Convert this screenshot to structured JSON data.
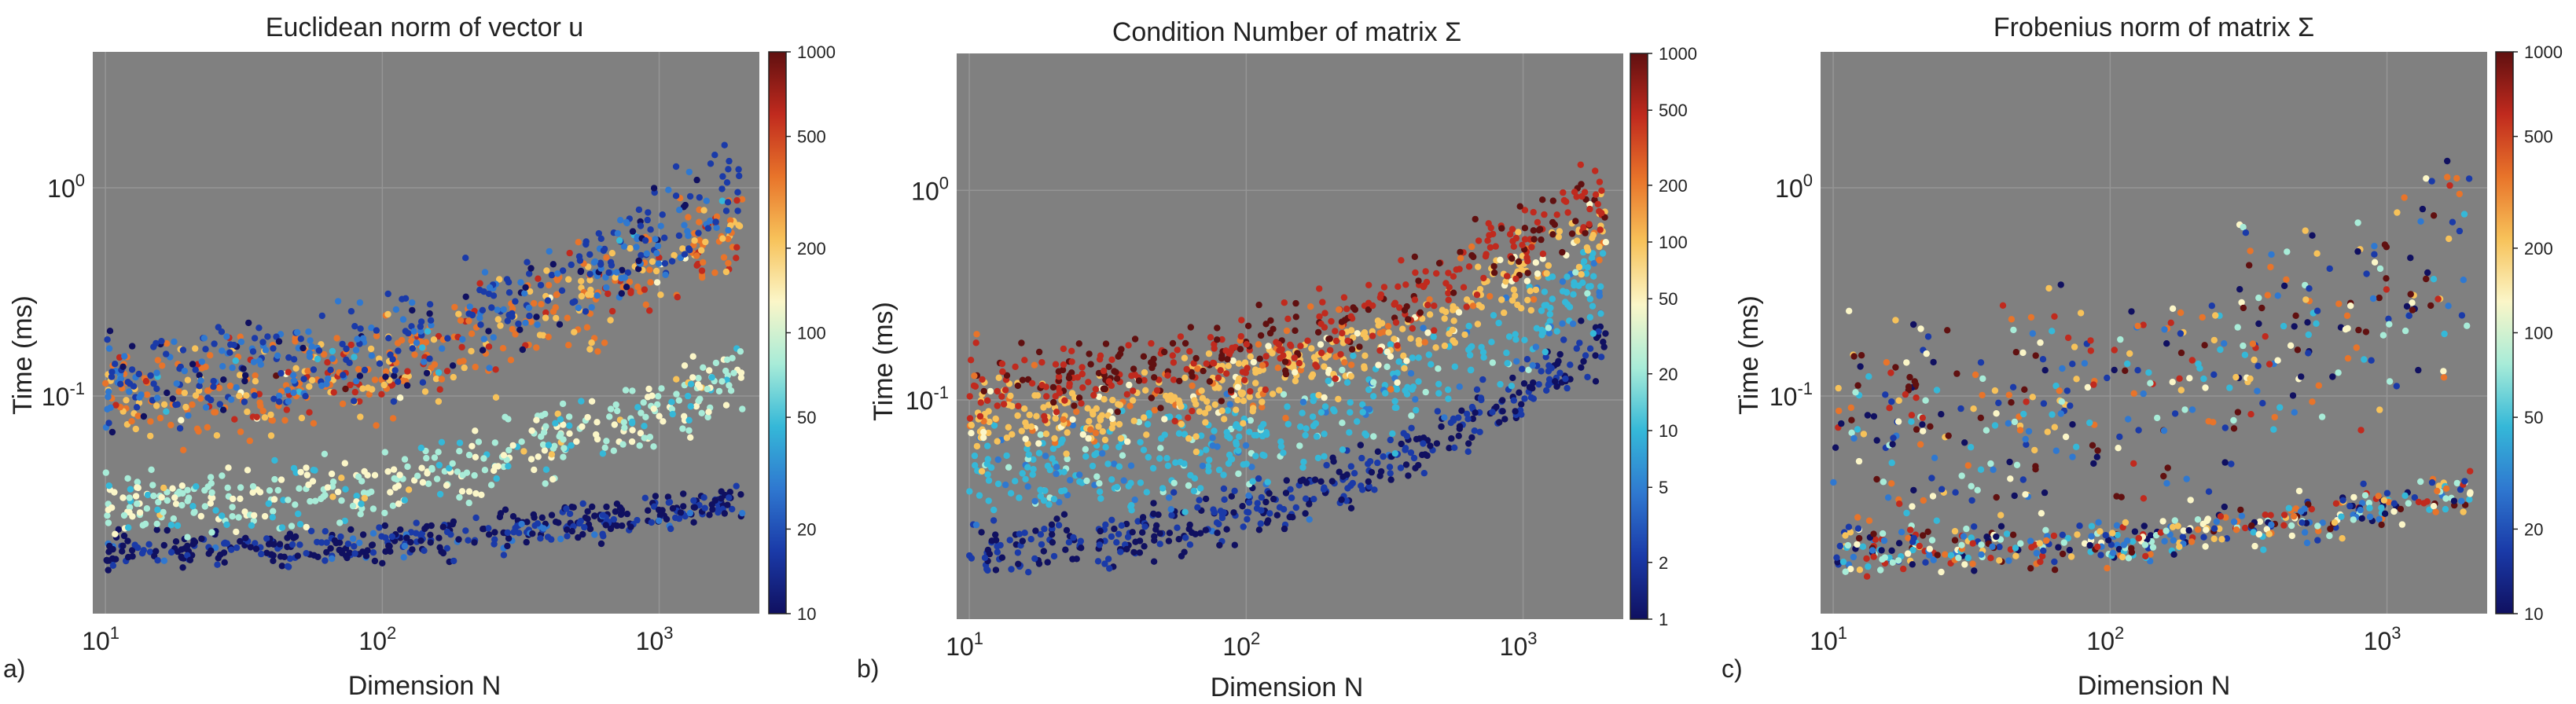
{
  "colors": {
    "plot_background": "#808080",
    "grid": "#959595",
    "colormap": [
      "#101060",
      "#1a3aa8",
      "#2f78d0",
      "#35b8d8",
      "#a8ecd8",
      "#fbf6c8",
      "#f7c25a",
      "#e8742a",
      "#c02a1e",
      "#601010"
    ]
  },
  "chart_data": [
    {
      "type": "scatter",
      "panel_label": "a)",
      "title": "Euclidean norm of vector u",
      "xlabel": "Dimension N",
      "ylabel": "Time (ms)",
      "xscale": "log",
      "yscale": "log",
      "xlim": [
        9,
        2300
      ],
      "ylim": [
        0.009,
        4.5
      ],
      "x_ticks": [
        {
          "value": 10,
          "label": "10^1",
          "base": "10",
          "exp": "1"
        },
        {
          "value": 100,
          "label": "10^2",
          "base": "10",
          "exp": "2"
        },
        {
          "value": 1000,
          "label": "10^3",
          "base": "10",
          "exp": "3"
        }
      ],
      "y_ticks": [
        {
          "value": 0.1,
          "label": "10^-1",
          "base": "10",
          "exp": "-1"
        },
        {
          "value": 1,
          "label": "10^0",
          "base": "10",
          "exp": "0"
        }
      ],
      "colorbar": {
        "scale": "log",
        "range": [
          10,
          1000
        ],
        "ticks": [
          "10",
          "20",
          "50",
          "100",
          "200",
          "500",
          "1000"
        ],
        "tick_values": [
          10,
          20,
          50,
          100,
          200,
          500,
          1000
        ]
      },
      "series": [
        {
          "name": "norm ~ 10 (lowest band)",
          "color_value": 12,
          "y_at_N10": 0.018,
          "y_at_N2000": 0.032,
          "spread": 0.1
        },
        {
          "name": "norm ~ 50-100 band",
          "color_value": 90,
          "y_at_N10": 0.03,
          "y_at_N2000": 0.13,
          "spread": 0.18
        },
        {
          "name": "norm ~ 200-500 band",
          "color_value": 350,
          "y_at_N10": 0.1,
          "y_at_N2000": 0.7,
          "spread": 0.25
        },
        {
          "name": "norm ~ 20 (upper band)",
          "color_value": 20,
          "y_at_N10": 0.12,
          "y_at_N2000": 1.1,
          "spread": 0.25
        }
      ]
    },
    {
      "type": "scatter",
      "panel_label": "b)",
      "title": "Condition Number of matrix Σ",
      "xlabel": "Dimension N",
      "ylabel": "Time (ms)",
      "xscale": "log",
      "yscale": "log",
      "xlim": [
        9,
        2300
      ],
      "ylim": [
        0.009,
        4.5
      ],
      "x_ticks": [
        {
          "value": 10,
          "label": "10^1",
          "base": "10",
          "exp": "1"
        },
        {
          "value": 100,
          "label": "10^2",
          "base": "10",
          "exp": "2"
        },
        {
          "value": 1000,
          "label": "10^3",
          "base": "10",
          "exp": "3"
        }
      ],
      "y_ticks": [
        {
          "value": 0.1,
          "label": "10^-1",
          "base": "10",
          "exp": "-1"
        },
        {
          "value": 1,
          "label": "10^0",
          "base": "10",
          "exp": "0"
        }
      ],
      "colorbar": {
        "scale": "log",
        "range": [
          1,
          1000
        ],
        "ticks": [
          "1",
          "2",
          "5",
          "10",
          "20",
          "50",
          "100",
          "200",
          "500",
          "1000"
        ],
        "tick_values": [
          1,
          2,
          5,
          10,
          20,
          50,
          100,
          200,
          500,
          1000
        ]
      },
      "series": [
        {
          "name": "cond ~ 1-2 (lowest band)",
          "color_value": 1.5,
          "y_at_N10": 0.02,
          "y_at_N2000": 0.2,
          "spread": 0.15
        },
        {
          "name": "cond ~ 5-20 band",
          "color_value": 10,
          "y_at_N10": 0.045,
          "y_at_N2000": 0.4,
          "spread": 0.25
        },
        {
          "name": "cond ~ 50-200 band",
          "color_value": 100,
          "y_at_N10": 0.08,
          "y_at_N2000": 0.7,
          "spread": 0.2
        },
        {
          "name": "cond ~ 500-1000 band",
          "color_value": 600,
          "y_at_N10": 0.12,
          "y_at_N2000": 1.0,
          "spread": 0.2
        }
      ]
    },
    {
      "type": "scatter",
      "panel_label": "c)",
      "title": "Frobenius norm of matrix Σ",
      "xlabel": "Dimension N",
      "ylabel": "Time (ms)",
      "xscale": "log",
      "yscale": "log",
      "xlim": [
        9,
        2300
      ],
      "ylim": [
        0.009,
        4.5
      ],
      "x_ticks": [
        {
          "value": 10,
          "label": "10^1",
          "base": "10",
          "exp": "1"
        },
        {
          "value": 100,
          "label": "10^2",
          "base": "10",
          "exp": "2"
        },
        {
          "value": 1000,
          "label": "10^3",
          "base": "10",
          "exp": "3"
        }
      ],
      "y_ticks": [
        {
          "value": 0.1,
          "label": "10^-1",
          "base": "10",
          "exp": "-1"
        },
        {
          "value": 1,
          "label": "10^0",
          "base": "10",
          "exp": "0"
        }
      ],
      "colorbar": {
        "scale": "log",
        "range": [
          10,
          1000
        ],
        "ticks": [
          "10",
          "20",
          "50",
          "100",
          "200",
          "500",
          "1000"
        ],
        "tick_values": [
          10,
          20,
          50,
          100,
          200,
          500,
          1000
        ]
      },
      "series": [
        {
          "name": "all norms, lower band",
          "color_value": "mixed",
          "y_at_N10": 0.018,
          "y_at_N2000": 0.035,
          "spread": 0.12
        },
        {
          "name": "all norms, main cloud",
          "color_value": "mixed",
          "y_at_N10": 0.07,
          "y_at_N2000": 0.6,
          "spread": 0.6
        }
      ]
    }
  ]
}
